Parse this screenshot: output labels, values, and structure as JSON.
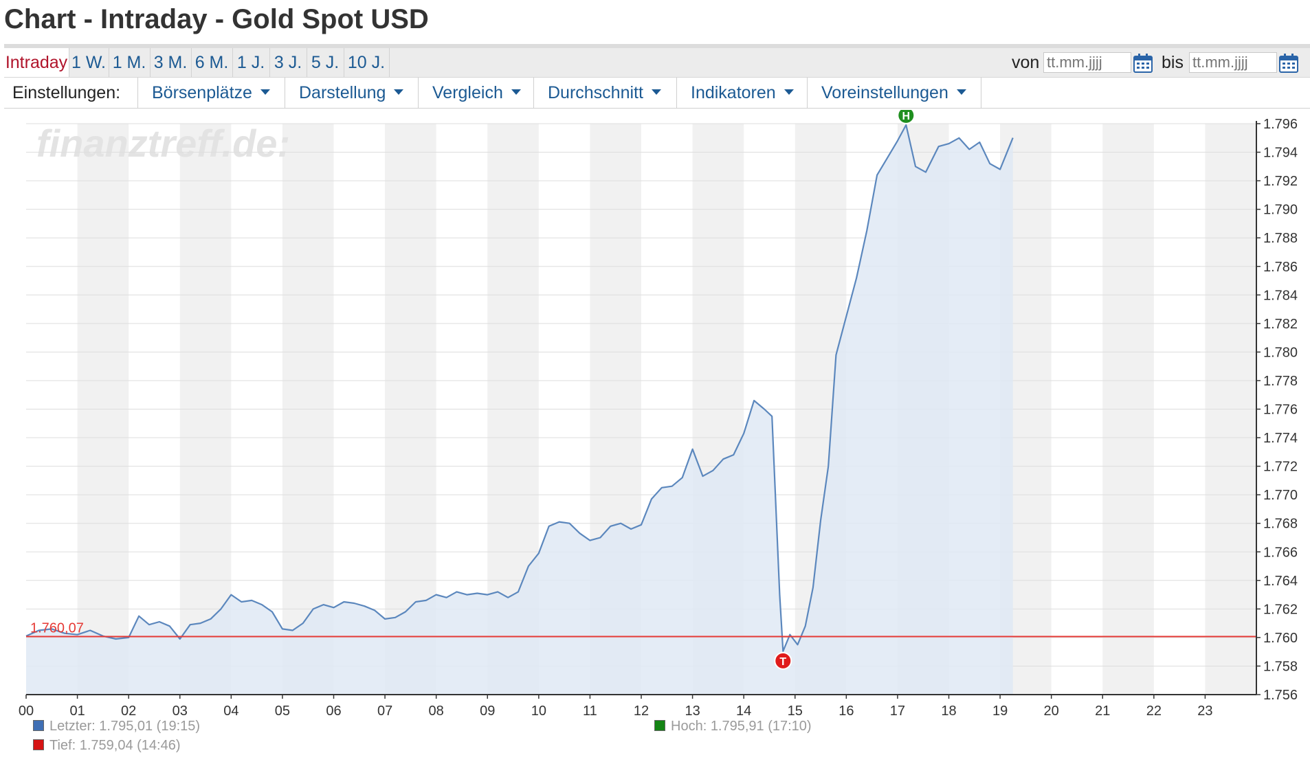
{
  "header": {
    "title": "Chart - Intraday - Gold Spot USD"
  },
  "periods": {
    "items": [
      "Intraday",
      "1 W.",
      "1 M.",
      "3 M.",
      "6 M.",
      "1 J.",
      "3 J.",
      "5 J.",
      "10 J."
    ],
    "active": "Intraday"
  },
  "date_range": {
    "from_label": "von",
    "from_placeholder": "tt.mm.jjjj",
    "to_label": "bis",
    "to_placeholder": "tt.mm.jjjj"
  },
  "settings": {
    "label": "Einstellungen:",
    "menus": [
      "Börsenplätze",
      "Darstellung",
      "Vergleich",
      "Durchschnitt",
      "Indikatoren",
      "Voreinstellungen"
    ]
  },
  "chart_data": {
    "type": "area",
    "watermark": "finanztreff.de:",
    "x_ticks": [
      "00",
      "01",
      "02",
      "03",
      "04",
      "05",
      "06",
      "07",
      "08",
      "09",
      "10",
      "11",
      "12",
      "13",
      "14",
      "15",
      "16",
      "17",
      "18",
      "19",
      "20",
      "21",
      "22",
      "23"
    ],
    "y_ticks": [
      "1.756",
      "1.758",
      "1.760",
      "1.762",
      "1.764",
      "1.766",
      "1.768",
      "1.770",
      "1.772",
      "1.774",
      "1.776",
      "1.778",
      "1.780",
      "1.782",
      "1.784",
      "1.786",
      "1.788",
      "1.790",
      "1.792",
      "1.794",
      "1.796"
    ],
    "xlim_hours": [
      0,
      24
    ],
    "ylim": [
      1756,
      1796
    ],
    "grid": true,
    "axis_side": "right",
    "reference_line": {
      "value": 1760.07,
      "label": "1.760,07",
      "color": "#e53935"
    },
    "series": [
      {
        "color": "#5b87bd",
        "fill": "#dfe9f5",
        "points": [
          [
            0.0,
            1760.1
          ],
          [
            0.25,
            1760.5
          ],
          [
            0.5,
            1760.6
          ],
          [
            0.75,
            1760.3
          ],
          [
            1.0,
            1760.2
          ],
          [
            1.25,
            1760.5
          ],
          [
            1.5,
            1760.1
          ],
          [
            1.75,
            1759.9
          ],
          [
            2.0,
            1760.0
          ],
          [
            2.2,
            1761.5
          ],
          [
            2.4,
            1760.9
          ],
          [
            2.6,
            1761.1
          ],
          [
            2.8,
            1760.8
          ],
          [
            3.0,
            1759.9
          ],
          [
            3.2,
            1760.9
          ],
          [
            3.4,
            1761.0
          ],
          [
            3.6,
            1761.3
          ],
          [
            3.8,
            1762.0
          ],
          [
            4.0,
            1763.0
          ],
          [
            4.2,
            1762.5
          ],
          [
            4.4,
            1762.6
          ],
          [
            4.6,
            1762.3
          ],
          [
            4.8,
            1761.8
          ],
          [
            5.0,
            1760.6
          ],
          [
            5.2,
            1760.5
          ],
          [
            5.4,
            1761.0
          ],
          [
            5.6,
            1762.0
          ],
          [
            5.8,
            1762.3
          ],
          [
            6.0,
            1762.1
          ],
          [
            6.2,
            1762.5
          ],
          [
            6.4,
            1762.4
          ],
          [
            6.6,
            1762.2
          ],
          [
            6.8,
            1761.9
          ],
          [
            7.0,
            1761.3
          ],
          [
            7.2,
            1761.4
          ],
          [
            7.4,
            1761.8
          ],
          [
            7.6,
            1762.5
          ],
          [
            7.8,
            1762.6
          ],
          [
            8.0,
            1763.0
          ],
          [
            8.2,
            1762.8
          ],
          [
            8.4,
            1763.2
          ],
          [
            8.6,
            1763.0
          ],
          [
            8.8,
            1763.1
          ],
          [
            9.0,
            1763.0
          ],
          [
            9.2,
            1763.2
          ],
          [
            9.4,
            1762.8
          ],
          [
            9.6,
            1763.2
          ],
          [
            9.8,
            1765.0
          ],
          [
            10.0,
            1765.9
          ],
          [
            10.2,
            1767.8
          ],
          [
            10.4,
            1768.1
          ],
          [
            10.6,
            1768.0
          ],
          [
            10.8,
            1767.3
          ],
          [
            11.0,
            1766.8
          ],
          [
            11.2,
            1767.0
          ],
          [
            11.4,
            1767.8
          ],
          [
            11.6,
            1768.0
          ],
          [
            11.8,
            1767.6
          ],
          [
            12.0,
            1767.9
          ],
          [
            12.2,
            1769.7
          ],
          [
            12.4,
            1770.5
          ],
          [
            12.6,
            1770.6
          ],
          [
            12.8,
            1771.2
          ],
          [
            13.0,
            1773.2
          ],
          [
            13.2,
            1771.3
          ],
          [
            13.4,
            1771.7
          ],
          [
            13.6,
            1772.5
          ],
          [
            13.8,
            1772.8
          ],
          [
            14.0,
            1774.3
          ],
          [
            14.2,
            1776.6
          ],
          [
            14.4,
            1776.0
          ],
          [
            14.55,
            1775.5
          ],
          [
            14.7,
            1763.0
          ],
          [
            14.766,
            1759.04
          ],
          [
            14.9,
            1760.2
          ],
          [
            15.05,
            1759.5
          ],
          [
            15.2,
            1760.8
          ],
          [
            15.35,
            1763.5
          ],
          [
            15.5,
            1768.2
          ],
          [
            15.65,
            1772.0
          ],
          [
            15.8,
            1779.8
          ],
          [
            16.0,
            1782.5
          ],
          [
            16.2,
            1785.2
          ],
          [
            16.4,
            1788.5
          ],
          [
            16.6,
            1792.4
          ],
          [
            16.8,
            1793.6
          ],
          [
            17.0,
            1794.8
          ],
          [
            17.166,
            1795.91
          ],
          [
            17.35,
            1793.0
          ],
          [
            17.55,
            1792.6
          ],
          [
            17.8,
            1794.4
          ],
          [
            18.0,
            1794.6
          ],
          [
            18.2,
            1795.0
          ],
          [
            18.4,
            1794.2
          ],
          [
            18.6,
            1794.7
          ],
          [
            18.8,
            1793.2
          ],
          [
            19.0,
            1792.8
          ],
          [
            19.25,
            1795.01
          ]
        ]
      }
    ],
    "markers": [
      {
        "label": "H",
        "x": 17.166,
        "y": 1795.91,
        "color": "#1f8f1f",
        "position": "above"
      },
      {
        "label": "T",
        "x": 14.766,
        "y": 1759.04,
        "color": "#e01b1b",
        "position": "below"
      }
    ],
    "legend": [
      {
        "name": "Letzter:",
        "value": "1.795,01 (19:15)",
        "color": "#3f6fb4"
      },
      {
        "name": "Hoch:",
        "value": "1.795,91 (17:10)",
        "color": "#148414"
      },
      {
        "name": "Tief:",
        "value": "1.759,04 (14:46)",
        "color": "#d61414"
      }
    ]
  }
}
